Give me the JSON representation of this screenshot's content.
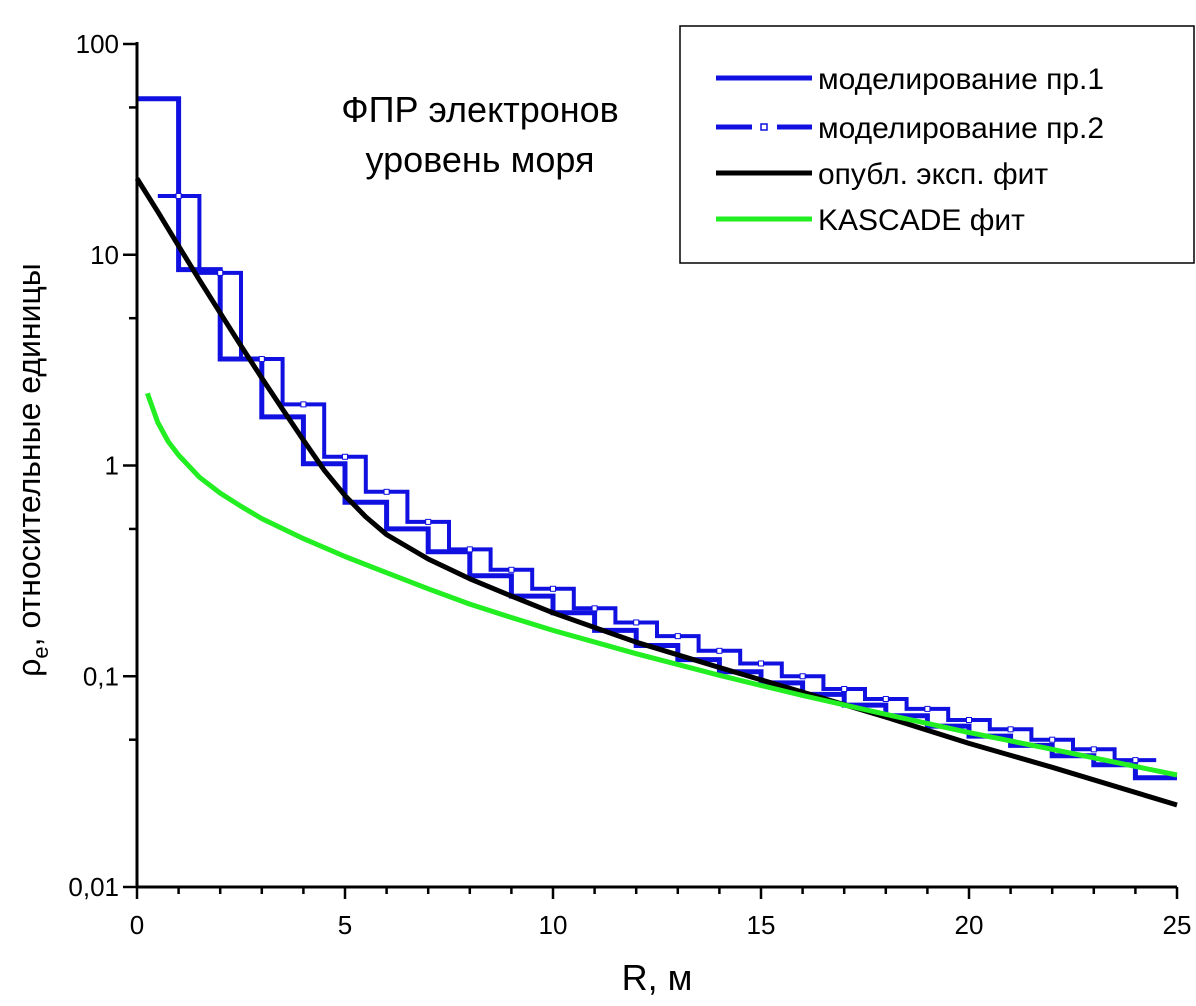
{
  "chart_data": {
    "type": "line",
    "title_lines": [
      "ФПР электронов",
      "уровень моря"
    ],
    "xlabel": "R, м",
    "ylabel_parts": {
      "symbol": "ρ",
      "subscript": "e",
      "rest": ", относительные единицы"
    },
    "xlim": [
      0,
      25
    ],
    "ylim": [
      0.01,
      100
    ],
    "yscale": "log",
    "x_ticks": [
      0,
      5,
      10,
      15,
      20,
      25
    ],
    "x_tick_labels": [
      "0",
      "5",
      "10",
      "15",
      "20",
      "25"
    ],
    "y_ticks": [
      0.01,
      0.1,
      1,
      10,
      100
    ],
    "y_tick_labels": [
      "0,01",
      "0,1",
      "1",
      "10",
      "100"
    ],
    "legend_position": "top-right",
    "grid": false,
    "series": [
      {
        "name": "моделирование пр.1",
        "color": "#1010e0",
        "style": "step-solid",
        "bin_width": 1,
        "bins_start": [
          0,
          1,
          2,
          3,
          4,
          5,
          6,
          7,
          8,
          9,
          10,
          11,
          12,
          13,
          14,
          15,
          16,
          17,
          18,
          19,
          20,
          21,
          22,
          23,
          24
        ],
        "values": [
          55,
          8.5,
          3.2,
          1.7,
          1.02,
          0.67,
          0.5,
          0.39,
          0.3,
          0.24,
          0.2,
          0.165,
          0.14,
          0.12,
          0.105,
          0.093,
          0.082,
          0.073,
          0.065,
          0.058,
          0.052,
          0.047,
          0.042,
          0.038,
          0.033
        ]
      },
      {
        "name": "моделирование пр.2",
        "color": "#1010e0",
        "style": "step-dashed-markers",
        "bin_width": 1,
        "bins_start": [
          0.5,
          1.5,
          2.5,
          3.5,
          4.5,
          5.5,
          6.5,
          7.5,
          8.5,
          9.5,
          10.5,
          11.5,
          12.5,
          13.5,
          14.5,
          15.5,
          16.5,
          17.5,
          18.5,
          19.5,
          20.5,
          21.5,
          22.5,
          23.5
        ],
        "values": [
          19,
          8.2,
          3.2,
          1.95,
          1.1,
          0.75,
          0.54,
          0.4,
          0.32,
          0.26,
          0.21,
          0.18,
          0.155,
          0.132,
          0.115,
          0.1,
          0.087,
          0.078,
          0.07,
          0.062,
          0.056,
          0.05,
          0.045,
          0.04
        ]
      },
      {
        "name": "опубл. эксп. фит",
        "color": "#000000",
        "style": "solid",
        "x": [
          0,
          0.5,
          1,
          1.5,
          2,
          2.5,
          3,
          3.5,
          4,
          4.5,
          5,
          5.5,
          6,
          7,
          8,
          9,
          10,
          12,
          14,
          16,
          18,
          20,
          22,
          25
        ],
        "y": [
          23,
          16,
          11,
          7.6,
          5.3,
          3.7,
          2.6,
          1.85,
          1.32,
          0.95,
          0.72,
          0.57,
          0.47,
          0.36,
          0.29,
          0.24,
          0.2,
          0.145,
          0.11,
          0.084,
          0.064,
          0.048,
          0.037,
          0.0245
        ]
      },
      {
        "name": "KASCADE фит",
        "color": "#22ee22",
        "style": "solid",
        "x": [
          0.25,
          0.5,
          0.75,
          1,
          1.5,
          2,
          2.5,
          3,
          4,
          5,
          6,
          7,
          8,
          9,
          10,
          12,
          14,
          16,
          18,
          20,
          22,
          25
        ],
        "y": [
          2.2,
          1.6,
          1.3,
          1.12,
          0.88,
          0.74,
          0.64,
          0.56,
          0.45,
          0.37,
          0.31,
          0.26,
          0.22,
          0.19,
          0.165,
          0.128,
          0.101,
          0.081,
          0.066,
          0.054,
          0.045,
          0.034
        ]
      }
    ]
  }
}
